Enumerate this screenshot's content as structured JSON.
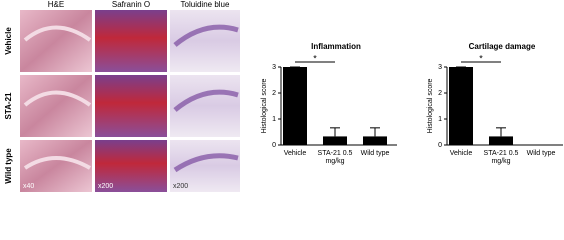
{
  "histology": {
    "columns": [
      "H&E",
      "Safranin O",
      "Toluidine blue"
    ],
    "rows": [
      "Vehicle",
      "STA-21",
      "Wild type"
    ],
    "magnifications": [
      "x40",
      "x200",
      "x200"
    ]
  },
  "chart_data": [
    {
      "type": "bar",
      "title": "Inflammation",
      "ylabel": "Histological score",
      "categories": [
        "Vehicle",
        "STA-21 0.5 mg/kg",
        "Wild type"
      ],
      "values": [
        3,
        0.33,
        0.33
      ],
      "errors": [
        0,
        0.33,
        0.33
      ],
      "color": "#000000",
      "ylim": [
        0,
        3
      ],
      "yticks": [
        0,
        1,
        2,
        3
      ],
      "annotation": "*"
    },
    {
      "type": "bar",
      "title": "Cartilage damage",
      "ylabel": "Histological score",
      "categories": [
        "Vehicle",
        "STA-21 0.5 mg/kg",
        "Wild type"
      ],
      "values": [
        3,
        0.33,
        0
      ],
      "errors": [
        0,
        0.33,
        0
      ],
      "color": "#000000",
      "ylim": [
        0,
        3
      ],
      "yticks": [
        0,
        1,
        2,
        3
      ],
      "annotation": "*"
    }
  ]
}
